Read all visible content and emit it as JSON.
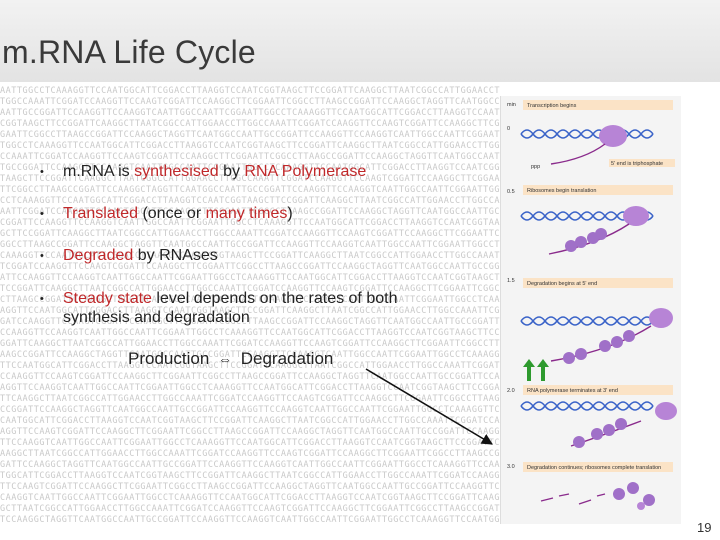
{
  "slide": {
    "title": "m.RNA Life Cycle",
    "page_number": "19"
  },
  "bullets": [
    {
      "parts": [
        {
          "text": "m.RNA is ",
          "red": false
        },
        {
          "text": "synthesised",
          "red": true
        },
        {
          "text": " by ",
          "red": false
        },
        {
          "text": "RNA Polymerase",
          "red": true
        }
      ]
    },
    {
      "parts": [
        {
          "text": "Translated",
          "red": true
        },
        {
          "text": " (once or ",
          "red": false
        },
        {
          "text": "many times",
          "red": true
        },
        {
          "text": ")",
          "red": false
        }
      ]
    },
    {
      "parts": [
        {
          "text": "Degraded",
          "red": true
        },
        {
          "text": " by RNAses",
          "red": false
        }
      ]
    },
    {
      "parts": [
        {
          "text": "Steady state",
          "red": true
        },
        {
          "text": " level depends on the rates of both synthesis and degradation",
          "red": false
        }
      ]
    }
  ],
  "balance": {
    "left": "Production",
    "right": "Degradation",
    "symbol": "⇔"
  },
  "figure": {
    "time_header": "min",
    "steps": [
      {
        "time": "0",
        "label": "Transcription begins"
      },
      {
        "time": "0.5",
        "label": "Ribosomes begin translation"
      },
      {
        "time": "1.5",
        "label": "Degradation begins at 5' end"
      },
      {
        "time": "2.0",
        "label": "RNA polymerase terminates at 3' end"
      },
      {
        "time": "3.0",
        "label": "Degradation continues; ribosomes complete translation"
      }
    ],
    "callout_label": "5' end is triphosphate",
    "ppp_label": "ppp"
  },
  "colors": {
    "accent_red": "#c0282a",
    "dna_blue": "#3a63c8",
    "mrna_purple": "#8a2b8c",
    "ribosome_purple": "#a070c8",
    "arrow_green": "#2e9a2e"
  },
  "background_sequence": "AATTGGCCTCAAAGGTTCCAATGGCATTCGGACCTTAAGGTCCAATCGGTAAGCTTCCGGATTCAAGGCTTAATCGGCCATTGGAACCTTGGCCAAATTCGGATCCAAGGTTCCAAGTCGGATTCCAAGGCTTCGGAATTCGGCCTTAAGCCGGATTCCAAGGCTAGGTTCAATGGCCAATTGCCGGATTCCAAGGTTCCAAGGTCAATTGGCCAATTCGG"
}
